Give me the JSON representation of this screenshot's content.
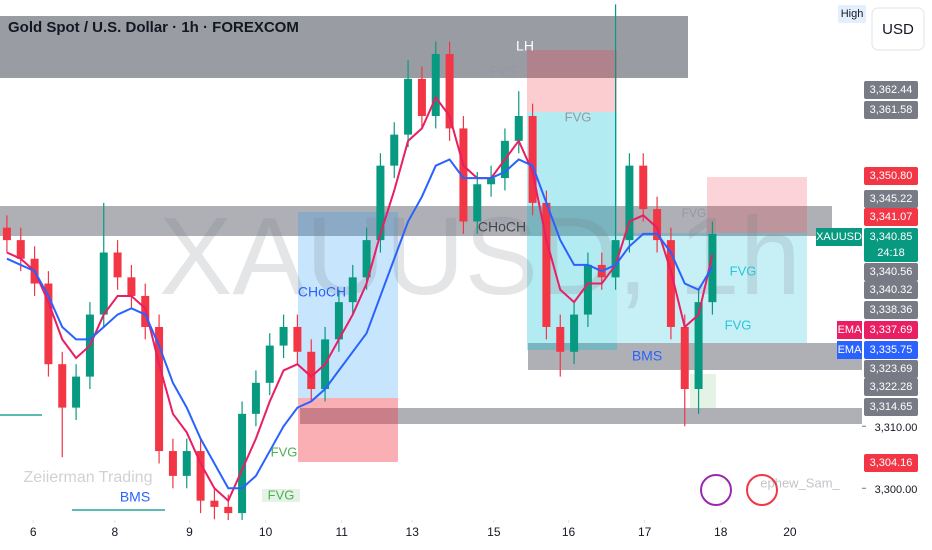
{
  "chart_data": {
    "type": "candlestick",
    "title": "Gold Spot / U.S. Dollar · 1h · FOREXCOM",
    "watermark": "XAUUSD, 1h",
    "currency": "USD",
    "high_tag": "High",
    "open": [
      3342,
      3340,
      3337,
      3333,
      3320,
      3313,
      3318,
      3328,
      3338,
      3334,
      3331,
      3326,
      3306,
      3302,
      3306,
      3298,
      3297,
      3296,
      3312,
      3317,
      3323,
      3326,
      3322,
      3316,
      3324,
      3330,
      3334,
      3340,
      3352,
      3357,
      3366,
      3360,
      3370,
      3358,
      3343,
      3349,
      3350,
      3356,
      3360,
      3346,
      3326,
      3322,
      3328,
      3336,
      3334,
      3340,
      3352,
      3345,
      3340,
      3326,
      3316,
      3330
    ],
    "high": [
      3344,
      3342,
      3339,
      3335,
      3322,
      3320,
      3330,
      3346,
      3340,
      3336,
      3333,
      3328,
      3308,
      3308,
      3308,
      3300,
      3299,
      3314,
      3319,
      3325,
      3328,
      3328,
      3324,
      3326,
      3332,
      3336,
      3342,
      3354,
      3359,
      3369,
      3368,
      3372,
      3372,
      3360,
      3351,
      3352,
      3358,
      3364,
      3362,
      3348,
      3328,
      3330,
      3338,
      3338,
      3378,
      3354,
      3354,
      3347,
      3342,
      3328,
      3332,
      3343
    ],
    "low": [
      3338,
      3335,
      3331,
      3318,
      3305,
      3311,
      3316,
      3326,
      3332,
      3329,
      3324,
      3304,
      3300,
      3300,
      3296,
      3295,
      3290,
      3294,
      3310,
      3315,
      3321,
      3320,
      3314,
      3314,
      3322,
      3328,
      3332,
      3338,
      3350,
      3355,
      3358,
      3358,
      3356,
      3341,
      3341,
      3347,
      3348,
      3354,
      3344,
      3324,
      3318,
      3320,
      3326,
      3332,
      3332,
      3338,
      3343,
      3338,
      3324,
      3310,
      3312,
      3328
    ],
    "close": [
      3340,
      3337,
      3333,
      3320,
      3313,
      3318,
      3328,
      3338,
      3334,
      3331,
      3326,
      3306,
      3302,
      3306,
      3298,
      3297,
      3296,
      3312,
      3317,
      3323,
      3326,
      3322,
      3316,
      3324,
      3330,
      3334,
      3340,
      3352,
      3357,
      3366,
      3360,
      3370,
      3358,
      3343,
      3349,
      3350,
      3356,
      3360,
      3346,
      3326,
      3322,
      3328,
      3336,
      3334,
      3340,
      3352,
      3345,
      3340,
      3326,
      3316,
      3330,
      3341
    ],
    "up_color": "#089981",
    "down_color": "#f23645",
    "series": [
      {
        "name": "EMA",
        "color": "#e91e63",
        "values": [
          3338,
          3337,
          3335,
          3330,
          3324,
          3321,
          3323,
          3328,
          3331,
          3331,
          3329,
          3320,
          3312,
          3309,
          3304,
          3300,
          3298,
          3303,
          3308,
          3314,
          3319,
          3320,
          3318,
          3320,
          3324,
          3328,
          3333,
          3341,
          3348,
          3356,
          3358,
          3363,
          3360,
          3352,
          3350,
          3350,
          3353,
          3356,
          3351,
          3340,
          3332,
          3330,
          3333,
          3333,
          3336,
          3343,
          3344,
          3342,
          3335,
          3326,
          3328,
          3337.69
        ]
      },
      {
        "name": "EMA",
        "color": "#2962ff",
        "values": [
          3337,
          3336,
          3335,
          3331,
          3326,
          3324,
          3324,
          3326,
          3328,
          3329,
          3328,
          3323,
          3317,
          3313,
          3308,
          3304,
          3300,
          3300,
          3302,
          3306,
          3310,
          3313,
          3314,
          3316,
          3319,
          3322,
          3325,
          3331,
          3337,
          3343,
          3347,
          3352,
          3353,
          3350,
          3350,
          3350,
          3351,
          3353,
          3352,
          3346,
          3340,
          3336,
          3336,
          3335,
          3336,
          3339,
          3341,
          3341,
          3338,
          3333,
          3332,
          3335.75
        ]
      }
    ],
    "xlim": [
      0,
      60
    ],
    "xticks": [
      {
        "value": 2.4,
        "label": "6"
      },
      {
        "value": 8.3,
        "label": "8"
      },
      {
        "value": 13.7,
        "label": "9"
      },
      {
        "value": 19.2,
        "label": "10"
      },
      {
        "value": 24.7,
        "label": "11"
      },
      {
        "value": 29.8,
        "label": "13"
      },
      {
        "value": 35.7,
        "label": "15"
      },
      {
        "value": 41.1,
        "label": "16"
      },
      {
        "value": 46.6,
        "label": "17"
      },
      {
        "value": 52.1,
        "label": "18"
      },
      {
        "value": 57.1,
        "label": "20"
      }
    ],
    "ylim": [
      3296.5,
      3378.7
    ],
    "yticks": [
      {
        "value": 3310,
        "label": "3,310.00"
      },
      {
        "value": 3300,
        "label": "3,300.00"
      }
    ],
    "price_labels": [
      {
        "label": "3,362.44",
        "color": "#787b86"
      },
      {
        "label": "3,361.58",
        "color": "#787b86"
      },
      {
        "label": "3,350.80",
        "color": "#f23645"
      },
      {
        "label": "3,345.22",
        "color": "#787b86"
      },
      {
        "label": "3,341.07",
        "color": "#f23645"
      },
      {
        "tag": "XAUUSD",
        "label": "3,340.85",
        "sub": "24:18",
        "color": "#089981"
      },
      {
        "label": "3,340.56",
        "color": "#787b86"
      },
      {
        "label": "3,340.32",
        "color": "#787b86"
      },
      {
        "label": "3,338.36",
        "color": "#787b86"
      },
      {
        "tag": "EMA",
        "label": "3,337.69",
        "color": "#e91e63"
      },
      {
        "tag": "EMA",
        "label": "3,335.75",
        "color": "#2962ff"
      },
      {
        "label": "3,323.69",
        "color": "#787b86"
      },
      {
        "label": "3,322.28",
        "color": "#787b86"
      },
      {
        "label": "3,314.65",
        "color": "#787b86"
      },
      {
        "label": "3,304.16",
        "color": "#f23645"
      }
    ],
    "annotations": [
      "LH",
      "FVG",
      "FVG",
      "CHoCH",
      "CHoCH",
      "FVG",
      "FVG",
      "FVG",
      "BMS",
      "FVG",
      "FVG",
      "BMS",
      "Zeiierman Trading",
      "ephew_Sam_"
    ]
  }
}
